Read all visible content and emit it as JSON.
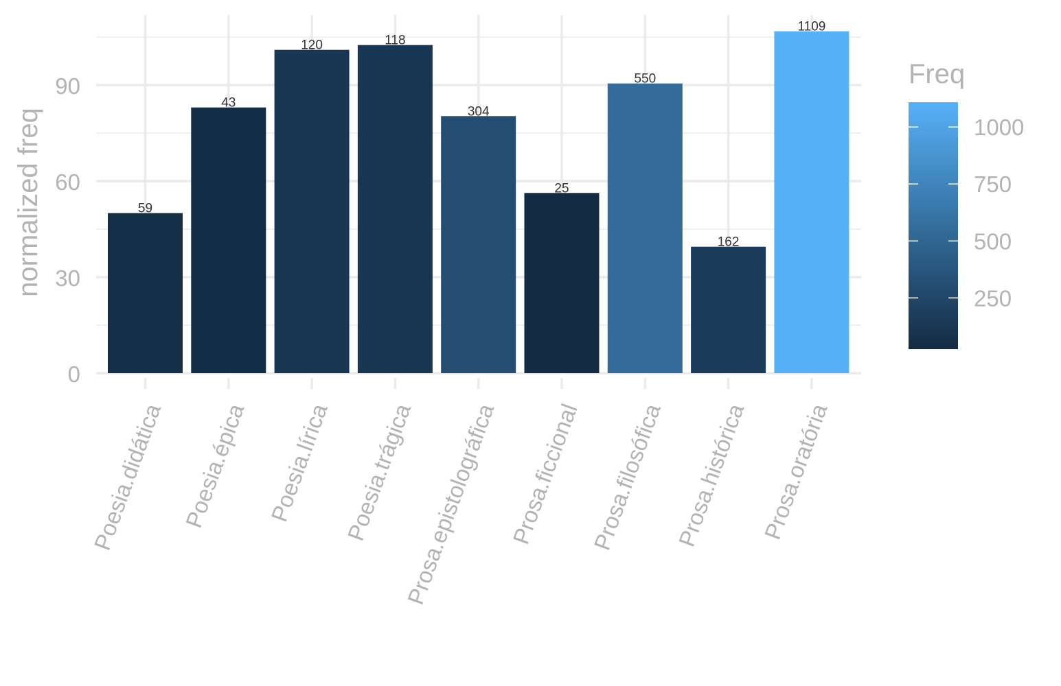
{
  "chart_data": {
    "type": "bar",
    "categories": [
      "Poesia.didática",
      "Poesia.épica",
      "Poesia.lírica",
      "Poesia.trágica",
      "Prosa.epistolográfica",
      "Prosa.ficcional",
      "Prosa.filosófica",
      "Prosa.histórica",
      "Prosa.oratória"
    ],
    "values": [
      50,
      83,
      101,
      102.5,
      80.3,
      56.3,
      90.5,
      39.5,
      106.8
    ],
    "freq": [
      59,
      43,
      120,
      118,
      304,
      25,
      550,
      162,
      1109
    ],
    "bar_labels": [
      "59",
      "43",
      "120",
      "118",
      "304",
      "25",
      "550",
      "162",
      "1109"
    ],
    "ylabel": "normalized freq",
    "xlabel": "",
    "ylim": [
      0,
      112
    ],
    "yticks": [
      0,
      30,
      60,
      90
    ],
    "ytick_labels": [
      "0",
      "30",
      "60",
      "90"
    ],
    "grid": true,
    "legend": {
      "title": "Freq",
      "placement": "right",
      "type": "colorbar",
      "range": [
        25,
        1109
      ],
      "ticks": [
        250,
        500,
        750,
        1000
      ],
      "tick_labels": [
        "250",
        "500",
        "750",
        "1000"
      ],
      "color_low": "#132b43",
      "color_high": "#56b1f7"
    }
  }
}
